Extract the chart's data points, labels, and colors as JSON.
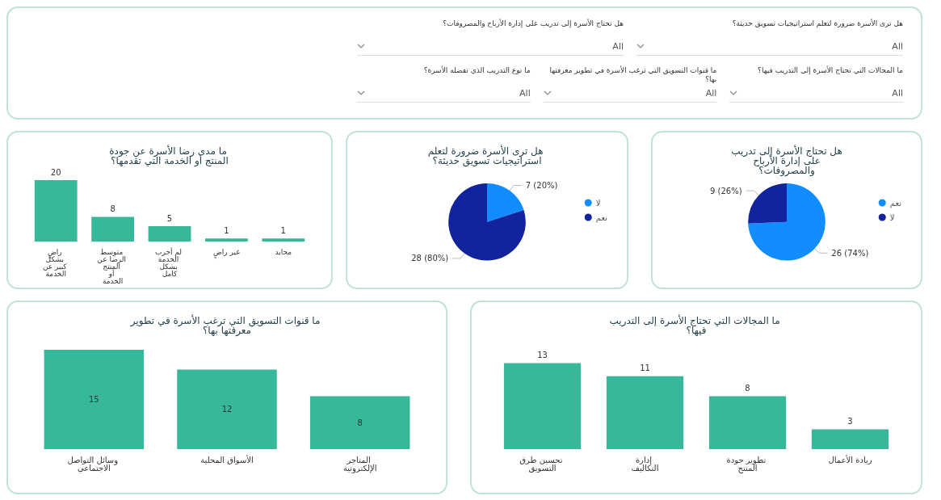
{
  "chart_data": [
    {
      "type": "other",
      "annotations": [
        "هل ترى الأسرة ضرورة لتعلم استراتيجيات تسويق حديثة؟",
        "All",
        "هل تحتاج الأسرة إلى تدريب على إدارة الأرباح والمصروفات؟",
        "All",
        "ما المجالات التي تحتاج الأسرة إلى التدريب فيها؟",
        "All",
        "ما قنوات التسويق التي ترغب الأسرة في تطوير معرفتها بها؟",
        "All",
        "ما نوع التدريب الذي تفضله الأسرة؟",
        "All"
      ]
    },
    {
      "type": "bar",
      "title": "ما مدى رضا الأسرة عن جودة المنتج أو الخدمة التي تقدمها؟",
      "categories": [
        "راضٍ بشكل كبير عن الخدمة",
        "متوسط الرضا عن المنتج أو الخدمة",
        "لم أجرب الخدمة بشكل كامل",
        "غير راضٍ",
        "محايد"
      ],
      "values": [
        20,
        8,
        5,
        1,
        1
      ],
      "color": "#37b89b",
      "data_labels": true
    },
    {
      "type": "pie",
      "title": "هل ترى الأسرة ضرورة لتعلم استراتيجيات تسويق حديثة؟",
      "categories": [
        "لا",
        "نعم"
      ],
      "values": [
        7,
        28
      ],
      "colors": [
        "#118dff",
        "#12239e"
      ],
      "value_labels": [
        "7 (20%)",
        "28 (80%)"
      ],
      "legend": "right"
    },
    {
      "type": "pie",
      "title": "هل تحتاج الأسرة إلى تدريب على إدارة الأرباح والمصروفات؟",
      "categories": [
        "نعم",
        "لا"
      ],
      "values": [
        26,
        9
      ],
      "colors": [
        "#118dff",
        "#12239e"
      ],
      "value_labels": [
        "26 (74%)",
        "9 (26%)"
      ],
      "legend": "right"
    },
    {
      "type": "bar",
      "title": "ما قنوات التسويق التي ترغب الأسرة في تطوير معرفتها بها؟",
      "categories": [
        "وسائل التواصل الاجتماعي",
        "الأسواق المحلية",
        "المتاجر الإلكترونية"
      ],
      "values": [
        15,
        12,
        8
      ],
      "color": "#37b89b",
      "data_labels": true
    },
    {
      "type": "bar",
      "title": "ما المجالات التي تحتاج الأسرة إلى التدريب فيها؟",
      "categories": [
        "تحسين طرق التسويق",
        "إدارة التكاليف",
        "تطوير جودة المنتج",
        "ريادة الأعمال"
      ],
      "values": [
        13,
        11,
        8,
        3
      ],
      "color": "#37b89b",
      "data_labels": true
    }
  ]
}
